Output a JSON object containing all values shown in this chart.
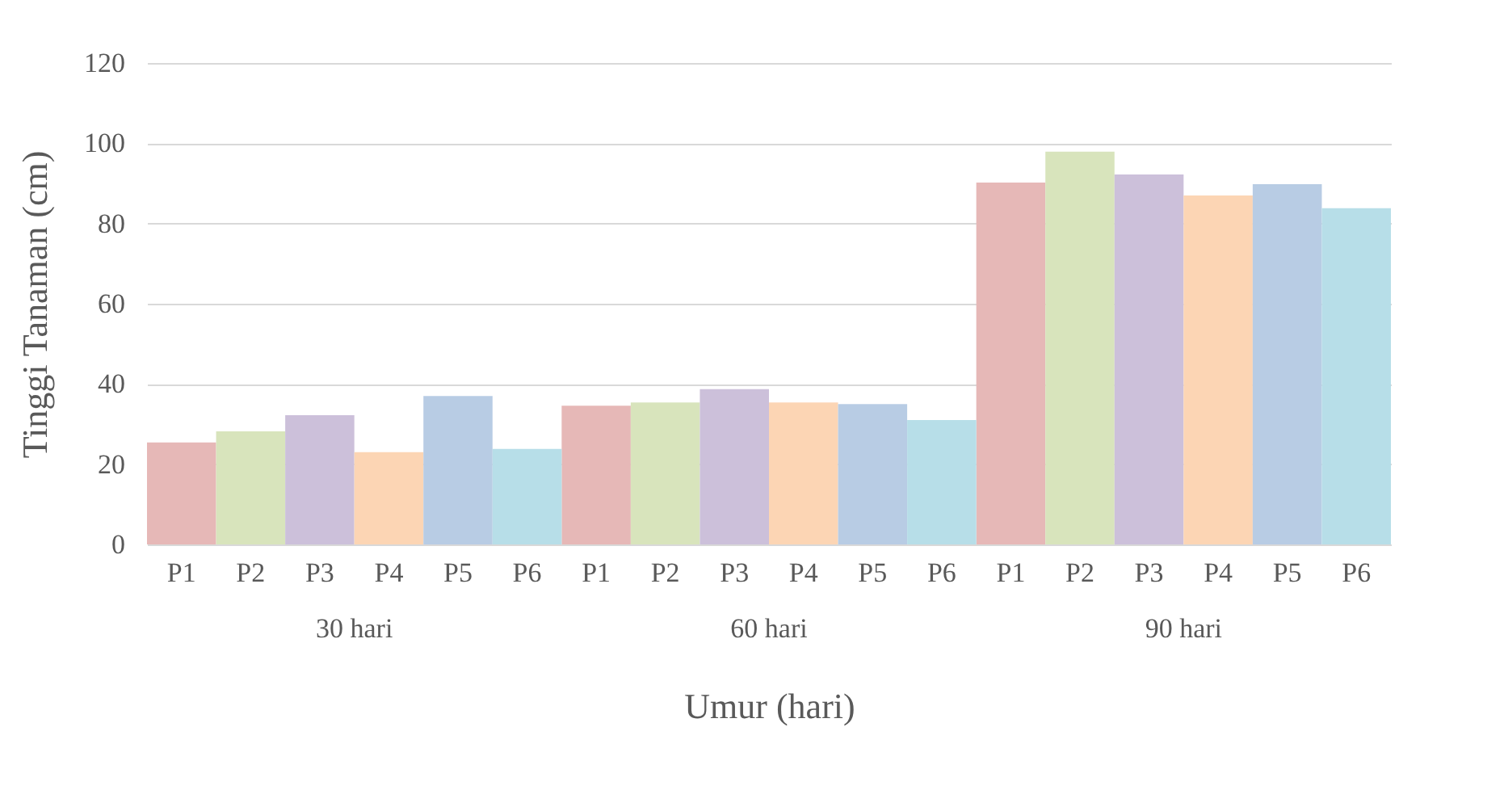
{
  "chart_data": {
    "type": "bar",
    "xlabel": "Umur (hari)",
    "ylabel": "Tinggi Tanaman (cm)",
    "categories": [
      "30 hari",
      "60 hari",
      "90 hari"
    ],
    "series": [
      {
        "name": "P1",
        "color": "#e6b8b7",
        "values": [
          25.4,
          34.6,
          90.2
        ]
      },
      {
        "name": "P2",
        "color": "#d8e4bc",
        "values": [
          28.2,
          35.4,
          97.9
        ]
      },
      {
        "name": "P3",
        "color": "#ccc0da",
        "values": [
          32.2,
          38.7,
          92.2
        ]
      },
      {
        "name": "P4",
        "color": "#fcd5b4",
        "values": [
          23,
          35.4,
          87
        ]
      },
      {
        "name": "P5",
        "color": "#b8cce4",
        "values": [
          37,
          35,
          89.8
        ]
      },
      {
        "name": "P6",
        "color": "#b7dee8",
        "values": [
          23.8,
          31,
          83.8
        ]
      }
    ],
    "ylim": [
      0,
      120
    ],
    "yticks": [
      0,
      20,
      40,
      60,
      80,
      100,
      120
    ],
    "grid": "y",
    "legend": false
  }
}
